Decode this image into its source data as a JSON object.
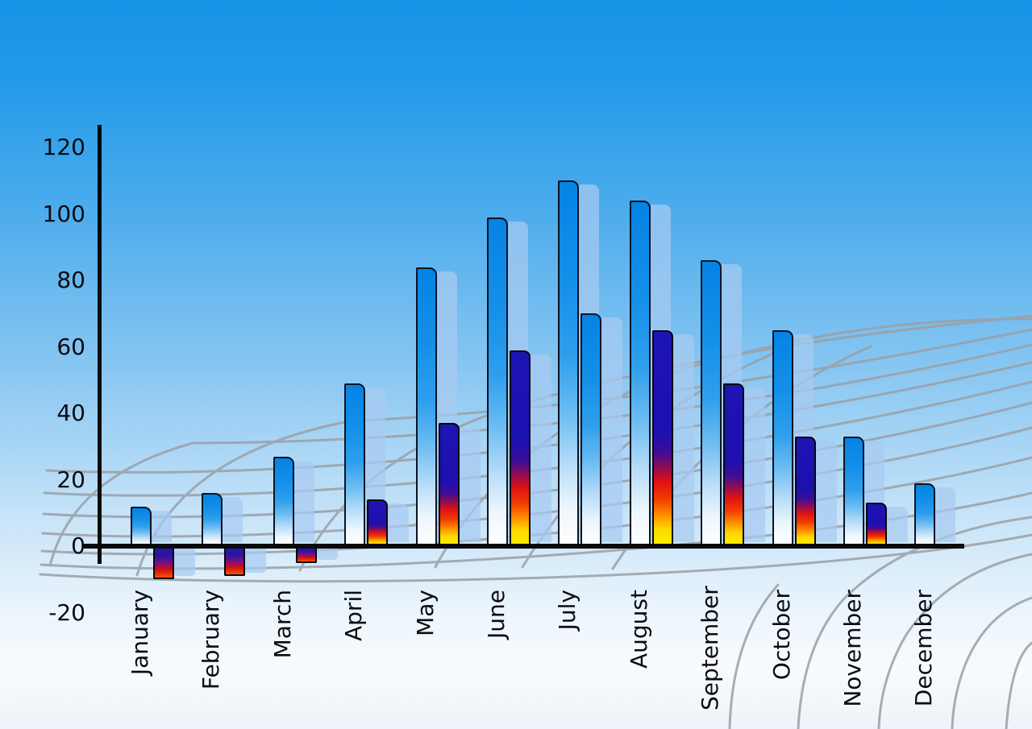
{
  "chart_data": {
    "type": "bar",
    "title": "",
    "xlabel": "",
    "ylabel": "",
    "categories": [
      "January",
      "February",
      "March",
      "April",
      "May",
      "June",
      "July",
      "August",
      "September",
      "October",
      "November",
      "December"
    ],
    "series": [
      {
        "name": "blue-gradient-bars",
        "values": [
          12,
          16,
          27,
          49,
          84,
          99,
          110,
          104,
          86,
          65,
          33,
          19
        ]
      },
      {
        "name": "accent-bars",
        "values": [
          -10,
          -9,
          -5,
          14,
          37,
          59,
          70,
          65,
          49,
          33,
          13,
          null
        ]
      }
    ],
    "accent_bar_styles": [
      "fire",
      "fire",
      "fire",
      "fire",
      "fire",
      "fire",
      "blue",
      "fire",
      "fire",
      "fire",
      "fire",
      null
    ],
    "yticks": [
      120,
      100,
      80,
      60,
      40,
      20,
      0,
      -20
    ],
    "ylim": [
      -20,
      120
    ],
    "legend_position": "none",
    "grid": "curved gray perspective mesh floor behind bars",
    "background": "sky-blue gradient fading to white near bottom"
  },
  "colors": {
    "sky_top": "#1793e5",
    "sky_bottom": "#f8fbfd",
    "bar_blue_top": "#0583e4",
    "bar_blue_bottom": "#ffffff",
    "fire_navy": "#1e14b4",
    "fire_red": "#e01212",
    "fire_yellow": "#fdee00",
    "shadow_bar": "#a8cbf1",
    "mesh_gray": "#9aa0a6",
    "axis_black": "#0a0a0c",
    "label_text": "#0c0c12"
  }
}
